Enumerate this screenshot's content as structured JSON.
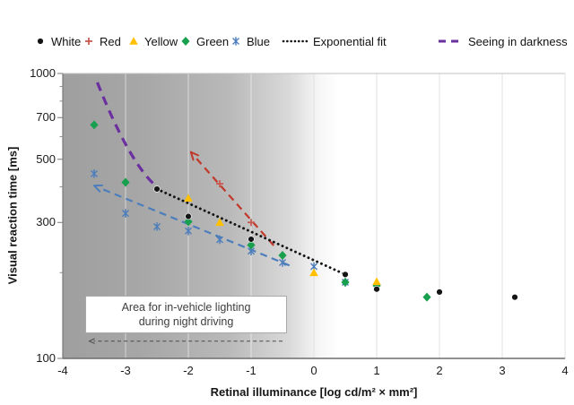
{
  "figure": {
    "legend": {
      "items": [
        {
          "label": "White",
          "marker": "circle",
          "color": "#141414"
        },
        {
          "label": "Red",
          "marker": "plus",
          "color": "#C9564E"
        },
        {
          "label": "Yellow",
          "marker": "triangle",
          "color": "#FFC000"
        },
        {
          "label": "Green",
          "marker": "diamond",
          "color": "#19A04F"
        },
        {
          "label": "Blue",
          "marker": "star",
          "color": "#4C7EBB"
        },
        {
          "label": "Exponential fit",
          "marker": "dotted-line",
          "color": "#141414"
        },
        {
          "label": "Seeing in darkness",
          "marker": "dashed-line",
          "color": "#6B2FA0"
        }
      ]
    }
  },
  "chart_data": {
    "type": "scatter",
    "title": "",
    "xlabel": "Retinal illuminance [log cd/m² × mm²]",
    "ylabel": "Visual reaction time [ms]",
    "x_axis": {
      "min": -4,
      "max": 4,
      "ticks": [
        -4,
        -3,
        -2,
        -1,
        0,
        1,
        2,
        3,
        4
      ]
    },
    "y_axis": {
      "scale": "log",
      "min": 100,
      "max": 1000,
      "labeled_ticks": [
        1000,
        700,
        500,
        300,
        100
      ],
      "minor_ticks": [
        900,
        800,
        600,
        400,
        200
      ]
    },
    "grid": "vertical-only",
    "series": [
      {
        "name": "White",
        "marker": "circle",
        "color": "#141414",
        "points": [
          [
            -2.5,
            393
          ],
          [
            -2,
            315
          ],
          [
            -1,
            262
          ],
          [
            0.5,
            197
          ],
          [
            1,
            175
          ],
          [
            2,
            171
          ],
          [
            3.2,
            164
          ]
        ]
      },
      {
        "name": "Red",
        "marker": "plus",
        "color": "#C9564E",
        "points": [
          [
            -1.5,
            410
          ],
          [
            -1,
            300
          ]
        ]
      },
      {
        "name": "Yellow",
        "marker": "triangle",
        "color": "#FFC000",
        "points": [
          [
            -2,
            365
          ],
          [
            -1.5,
            300
          ],
          [
            0,
            200
          ],
          [
            1,
            186
          ]
        ]
      },
      {
        "name": "Green",
        "marker": "diamond",
        "color": "#19A04F",
        "points": [
          [
            -3.5,
            660
          ],
          [
            -3,
            415
          ],
          [
            -2,
            302
          ],
          [
            -1,
            250
          ],
          [
            -0.5,
            230
          ],
          [
            0.5,
            185
          ],
          [
            1,
            180
          ],
          [
            1.8,
            164
          ]
        ]
      },
      {
        "name": "Blue",
        "marker": "star",
        "color": "#4C7EBB",
        "points": [
          [
            -3.5,
            445
          ],
          [
            -3,
            323
          ],
          [
            -2.5,
            290
          ],
          [
            -2,
            280
          ],
          [
            -1.5,
            261
          ],
          [
            -1,
            238
          ],
          [
            -0.5,
            217
          ],
          [
            0,
            210
          ],
          [
            0.5,
            185
          ],
          [
            1,
            178
          ]
        ]
      }
    ],
    "exponential_fit": {
      "label": "Exponential fit",
      "color": "#141414",
      "from": [
        -2.5,
        393
      ],
      "to": [
        0.5,
        197
      ]
    },
    "seeing_in_darkness": {
      "label": "Seeing in darkness",
      "color": "#6B2FA0",
      "from": [
        -3.45,
        930
      ],
      "control": [
        -2.93,
        480
      ],
      "to": [
        -2.5,
        400
      ]
    },
    "annotations": {
      "red_arrow": {
        "color": "#C0392B",
        "tail": [
          -0.64,
          249
        ],
        "tip": [
          -1.96,
          530
        ]
      },
      "blue_arrow": {
        "color": "#4C7EBB",
        "tail": [
          -0.39,
          212
        ],
        "tip": [
          -3.5,
          404
        ]
      },
      "night_driving_arrow": {
        "color": "#4a4a4a",
        "tail": [
          -0.5,
          115
        ],
        "tip": [
          -3.58,
          115
        ]
      },
      "area_box": {
        "line1": "Area for in-vehicle lighting",
        "line2": "during night driving"
      }
    }
  }
}
